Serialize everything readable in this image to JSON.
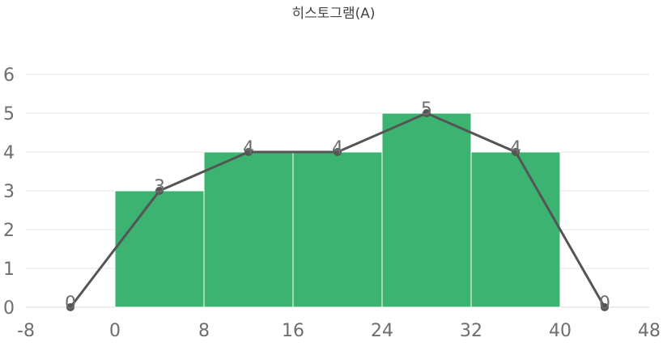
{
  "chart_data": {
    "type": "bar",
    "title": "히스토그램(A)",
    "xlabel": "",
    "ylabel": "",
    "xlim": [
      -8,
      48
    ],
    "ylim": [
      0,
      6
    ],
    "x_ticks": [
      "-8",
      "0",
      "8",
      "16",
      "24",
      "32",
      "40",
      "48"
    ],
    "y_ticks": [
      "0",
      "1",
      "2",
      "3",
      "4",
      "5",
      "6"
    ],
    "grid": true,
    "bars": [
      {
        "x_start": 0,
        "x_end": 8,
        "value": 3
      },
      {
        "x_start": 8,
        "x_end": 16,
        "value": 4
      },
      {
        "x_start": 16,
        "x_end": 24,
        "value": 4
      },
      {
        "x_start": 24,
        "x_end": 32,
        "value": 5
      },
      {
        "x_start": 32,
        "x_end": 40,
        "value": 4
      }
    ],
    "line": {
      "type": "line",
      "points": [
        {
          "x": -4,
          "y": 0,
          "label": "0"
        },
        {
          "x": 4,
          "y": 3,
          "label": "3"
        },
        {
          "x": 12,
          "y": 4,
          "label": "4"
        },
        {
          "x": 20,
          "y": 4,
          "label": "4"
        },
        {
          "x": 28,
          "y": 5,
          "label": "5"
        },
        {
          "x": 36,
          "y": 4,
          "label": "4"
        },
        {
          "x": 44,
          "y": 0,
          "label": "0"
        }
      ]
    },
    "colors": {
      "bar": "#3cb371",
      "line": "#555555",
      "marker": "#555555"
    }
  }
}
